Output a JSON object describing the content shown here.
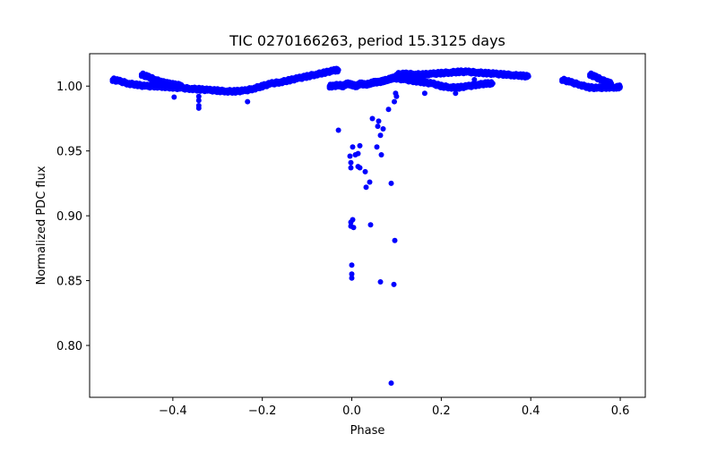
{
  "figure": {
    "title": "TIC 0270166263, period 15.3125 days",
    "xlabel": "Phase",
    "ylabel": "Normalized PDC flux"
  },
  "chart_data": {
    "type": "scatter",
    "title": "TIC 0270166263, period 15.3125 days",
    "xlabel": "Phase",
    "ylabel": "Normalized PDC flux",
    "xlim": [
      -0.586,
      0.656
    ],
    "ylim": [
      0.76,
      1.025
    ],
    "xticks": [
      -0.4,
      -0.2,
      0.0,
      0.2,
      0.4,
      0.6
    ],
    "xtick_labels": [
      "−0.4",
      "−0.2",
      "0.0",
      "0.2",
      "0.4",
      "0.6"
    ],
    "yticks": [
      0.8,
      0.85,
      0.9,
      0.95,
      1.0
    ],
    "ytick_labels": [
      "0.80",
      "0.85",
      "0.90",
      "0.95",
      "1.00"
    ],
    "grid": false,
    "legend": null,
    "marker_color": "#0000ff",
    "marker_size": 3,
    "series": [
      {
        "name": "band_left_main",
        "description": "dense band of points",
        "x": [
          -0.535,
          -0.52,
          -0.5,
          -0.48,
          -0.46,
          -0.44,
          -0.42,
          -0.4,
          -0.38,
          -0.36,
          -0.34,
          -0.32,
          -0.3,
          -0.28,
          -0.26,
          -0.24,
          -0.22,
          -0.2
        ],
        "y": [
          1.005,
          1.004,
          1.002,
          1.001,
          1.0,
          1.0,
          0.9995,
          0.999,
          0.9985,
          0.998,
          0.9975,
          0.997,
          0.9965,
          0.996,
          0.996,
          0.9965,
          0.998,
          1.0
        ]
      },
      {
        "name": "band_left_upper_branch",
        "x": [
          -0.47,
          -0.455,
          -0.44,
          -0.425,
          -0.41,
          -0.395,
          -0.38
        ],
        "y": [
          1.009,
          1.007,
          1.005,
          1.003,
          1.002,
          1.001,
          1.0005
        ]
      },
      {
        "name": "band_rising",
        "x": [
          -0.2,
          -0.18,
          -0.16,
          -0.14,
          -0.12,
          -0.1,
          -0.08,
          -0.06,
          -0.04,
          -0.03
        ],
        "y": [
          1.0,
          1.002,
          1.003,
          1.0045,
          1.006,
          1.0075,
          1.009,
          1.0105,
          1.012,
          1.0125
        ]
      },
      {
        "name": "band_center_low",
        "x": [
          -0.05,
          -0.04,
          -0.03,
          -0.02,
          -0.01,
          0.0,
          0.01,
          0.02,
          0.03,
          0.04,
          0.05,
          0.06,
          0.07,
          0.08,
          0.09,
          0.1
        ],
        "y": [
          1.0,
          1.0,
          1.001,
          1.0,
          1.002,
          1.001,
          1.0,
          1.002,
          1.001,
          1.002,
          1.003,
          1.003,
          1.004,
          1.005,
          1.006,
          1.007
        ]
      },
      {
        "name": "band_right_upper",
        "x": [
          0.1,
          0.12,
          0.14,
          0.16,
          0.18,
          0.2,
          0.22,
          0.24,
          0.26,
          0.28,
          0.3,
          0.32,
          0.34,
          0.36,
          0.38,
          0.395
        ],
        "y": [
          1.009,
          1.0095,
          1.009,
          1.009,
          1.0095,
          1.01,
          1.0105,
          1.011,
          1.011,
          1.0105,
          1.01,
          1.0095,
          1.009,
          1.0085,
          1.008,
          1.0075
        ]
      },
      {
        "name": "band_right_lower",
        "x": [
          0.1,
          0.12,
          0.14,
          0.16,
          0.18,
          0.2,
          0.22,
          0.24,
          0.26,
          0.28,
          0.3,
          0.315
        ],
        "y": [
          1.006,
          1.005,
          1.004,
          1.003,
          1.002,
          1.0,
          0.999,
          0.999,
          1.0,
          1.001,
          1.002,
          1.002
        ]
      },
      {
        "name": "band_far_right",
        "x": [
          0.47,
          0.49,
          0.51,
          0.53,
          0.55,
          0.57,
          0.59,
          0.6
        ],
        "y": [
          1.005,
          1.003,
          1.001,
          0.999,
          0.9985,
          0.999,
          0.999,
          0.9995
        ]
      },
      {
        "name": "band_far_right_branch",
        "x": [
          0.532,
          0.545,
          0.558,
          0.57,
          0.58
        ],
        "y": [
          1.009,
          1.007,
          1.005,
          1.003,
          1.002
        ]
      },
      {
        "name": "individual_points",
        "x": [
          -0.397,
          -0.342,
          -0.342,
          -0.342,
          -0.342,
          -0.233,
          -0.03,
          0.002,
          0.018,
          -0.004,
          0.008,
          0.014,
          -0.002,
          -0.002,
          0.014,
          0.018,
          0.03,
          0.04,
          0.032,
          0.088,
          0.046,
          0.06,
          0.058,
          0.07,
          0.064,
          0.056,
          0.066,
          0.082,
          0.095,
          0.1,
          0.002,
          -0.002,
          -0.002,
          0.004,
          0.042,
          0.096,
          0.0,
          0.0,
          0.0,
          0.064,
          0.094,
          0.088,
          0.098,
          0.163,
          0.232,
          0.274
        ],
        "y": [
          0.9915,
          0.992,
          0.989,
          0.985,
          0.983,
          0.988,
          0.966,
          0.953,
          0.954,
          0.946,
          0.947,
          0.948,
          0.941,
          0.937,
          0.938,
          0.937,
          0.934,
          0.926,
          0.922,
          0.925,
          0.975,
          0.973,
          0.969,
          0.967,
          0.962,
          0.953,
          0.947,
          0.982,
          0.988,
          0.992,
          0.897,
          0.895,
          0.892,
          0.891,
          0.893,
          0.881,
          0.862,
          0.855,
          0.852,
          0.849,
          0.847,
          0.771,
          0.9945,
          0.9945,
          0.9945,
          1.005
        ]
      }
    ]
  }
}
